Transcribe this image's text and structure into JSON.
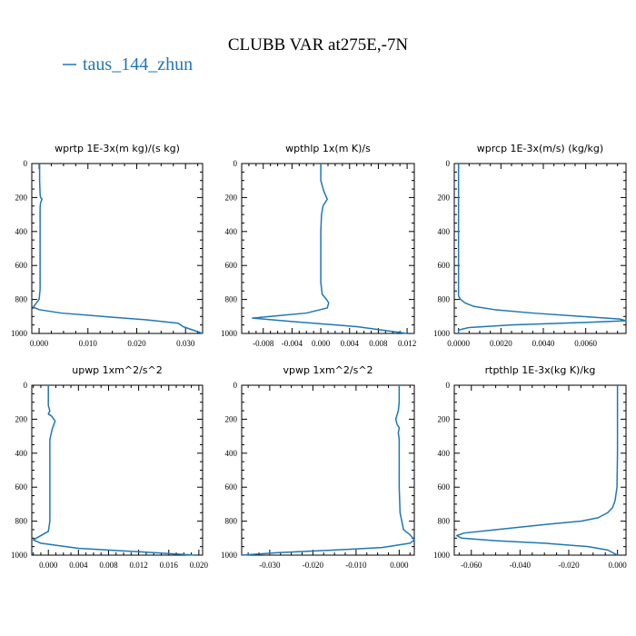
{
  "figure": {
    "title": "CLUBB VAR at275E,-7N",
    "legend_label": "taus_144_zhun",
    "line_color": "#1f77b4"
  },
  "chart_data": [
    {
      "type": "line",
      "title": "wprtp  1E-3x(m kg)/(s kg)",
      "xlim": [
        -0.0015,
        0.0335
      ],
      "ylim": [
        1000,
        0
      ],
      "grid": false,
      "xticks": [
        0.0,
        0.01,
        0.02,
        0.03
      ],
      "xtick_labels": [
        "0.000",
        "0.010",
        "0.020",
        "0.030"
      ],
      "yticks": [
        0,
        200,
        400,
        600,
        800,
        1000
      ],
      "series": [
        {
          "x": [
            0.0001,
            0.0001,
            0.0002,
            0.0003,
            0.0006,
            0.0003,
            0.0002,
            0.0002,
            0.0002,
            0.0002,
            0.0002,
            0.0002,
            0.0002,
            0.0001,
            0.0,
            -0.0008,
            -0.0012,
            0.0,
            0.0045,
            0.013,
            0.022,
            0.0285,
            0.0295,
            0.0335
          ],
          "y": [
            0,
            100,
            180,
            200,
            210,
            230,
            260,
            350,
            450,
            550,
            650,
            700,
            740,
            770,
            800,
            830,
            845,
            860,
            880,
            900,
            920,
            940,
            960,
            1000
          ]
        }
      ]
    },
    {
      "type": "line",
      "title": "wpthlp  1x(m K)/s",
      "xlim": [
        -0.011,
        0.013
      ],
      "ylim": [
        1000,
        0
      ],
      "grid": false,
      "xticks": [
        -0.008,
        -0.004,
        0.0,
        0.004,
        0.008,
        0.012
      ],
      "xtick_labels": [
        "-0.008",
        "-0.004",
        "0.000",
        "0.004",
        "0.008",
        "0.012"
      ],
      "yticks": [
        0,
        200,
        400,
        600,
        800,
        1000
      ],
      "series": [
        {
          "x": [
            0.0,
            0.0,
            0.0004,
            0.0009,
            0.0003,
            0.0001,
            0.0,
            0.0,
            0.0,
            0.0,
            0.0002,
            0.0008,
            0.0011,
            0.0009,
            -0.002,
            -0.007,
            -0.0095,
            -0.004,
            0.005,
            0.012
          ],
          "y": [
            0,
            100,
            160,
            210,
            250,
            300,
            400,
            500,
            600,
            700,
            770,
            800,
            820,
            850,
            880,
            900,
            910,
            930,
            960,
            1000
          ]
        }
      ]
    },
    {
      "type": "line",
      "title": "wprcp  1E-3x(m/s) (kg/kg)",
      "xlim": [
        -0.0002,
        0.0079
      ],
      "ylim": [
        1000,
        0
      ],
      "grid": false,
      "xticks": [
        0.0,
        0.002,
        0.004,
        0.006
      ],
      "xtick_labels": [
        "0.0000",
        "0.0020",
        "0.0040",
        "0.0060"
      ],
      "yticks": [
        0,
        200,
        400,
        600,
        800,
        1000
      ],
      "series": [
        {
          "x": [
            0.0,
            0.0,
            0.0,
            0.0,
            0.0,
            0.0001,
            0.0003,
            0.0007,
            0.0017,
            0.0035,
            0.0058,
            0.0076,
            0.0079,
            0.006,
            0.0025,
            0.0005,
            0.0,
            0.0
          ],
          "y": [
            0,
            200,
            400,
            600,
            780,
            800,
            820,
            840,
            860,
            880,
            900,
            915,
            925,
            935,
            950,
            965,
            980,
            1000
          ]
        }
      ]
    },
    {
      "type": "line",
      "title": "upwp  1xm^2/s^2",
      "xlim": [
        -0.0022,
        0.0205
      ],
      "ylim": [
        1000,
        0
      ],
      "grid": false,
      "xticks": [
        0.0,
        0.004,
        0.008,
        0.012,
        0.016,
        0.02
      ],
      "xtick_labels": [
        "0.000",
        "0.004",
        "0.008",
        "0.012",
        "0.016",
        "0.020"
      ],
      "yticks": [
        0,
        200,
        400,
        600,
        800,
        1000
      ],
      "series": [
        {
          "x": [
            0.0,
            0.0,
            0.0002,
            0.0,
            0.0004,
            0.0009,
            0.0005,
            0.0002,
            0.0002,
            0.0002,
            0.0002,
            0.0002,
            0.0002,
            0.0002,
            0.0,
            -0.0012,
            -0.002,
            -0.001,
            0.004,
            0.012,
            0.0195
          ],
          "y": [
            0,
            120,
            150,
            170,
            180,
            210,
            260,
            320,
            350,
            400,
            500,
            600,
            700,
            800,
            860,
            890,
            910,
            930,
            960,
            980,
            1000
          ]
        }
      ]
    },
    {
      "type": "line",
      "title": "vpwp  1xm^2/s^2",
      "xlim": [
        -0.0365,
        0.0035
      ],
      "ylim": [
        1000,
        0
      ],
      "grid": false,
      "xticks": [
        -0.03,
        -0.02,
        -0.01,
        0.0
      ],
      "xtick_labels": [
        "-0.030",
        "-0.020",
        "-0.010",
        "0.000"
      ],
      "yticks": [
        0,
        200,
        400,
        600,
        800,
        1000
      ],
      "series": [
        {
          "x": [
            0.0,
            0.0,
            -0.0002,
            -0.0008,
            -0.0005,
            0.0,
            -0.0002,
            0.0,
            0.0,
            0.0,
            0.0,
            0.0002,
            0.001,
            0.0025,
            0.0035,
            0.0025,
            -0.004,
            -0.015,
            -0.028,
            -0.0365
          ],
          "y": [
            0,
            100,
            150,
            200,
            230,
            250,
            280,
            320,
            400,
            500,
            600,
            750,
            850,
            880,
            910,
            930,
            955,
            970,
            985,
            1000
          ]
        }
      ]
    },
    {
      "type": "line",
      "title": "rtpthlp  1E-3x(kg K)/kg",
      "xlim": [
        -0.067,
        0.0035
      ],
      "ylim": [
        1000,
        0
      ],
      "grid": false,
      "xticks": [
        -0.06,
        -0.04,
        -0.02,
        0.0
      ],
      "xtick_labels": [
        "-0.060",
        "-0.040",
        "-0.020",
        "0.000"
      ],
      "yticks": [
        0,
        200,
        400,
        600,
        800,
        1000
      ],
      "series": [
        {
          "x": [
            0.0,
            0.0,
            0.0,
            -0.0002,
            -0.001,
            -0.002,
            -0.004,
            -0.008,
            -0.015,
            -0.03,
            -0.05,
            -0.063,
            -0.066,
            -0.064,
            -0.05,
            -0.03,
            -0.012,
            -0.004,
            0.0
          ],
          "y": [
            0,
            200,
            400,
            600,
            680,
            720,
            750,
            780,
            800,
            820,
            850,
            870,
            885,
            900,
            915,
            930,
            950,
            970,
            1000
          ]
        }
      ]
    }
  ]
}
